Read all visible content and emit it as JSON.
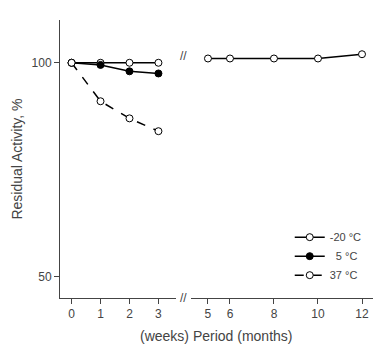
{
  "chart_data": {
    "type": "line",
    "xlabel": "(weeks) Period (months)",
    "ylabel": "Residual Activity, %",
    "ylim": [
      45,
      110
    ],
    "yticks": [
      50,
      100
    ],
    "x_axes": [
      {
        "xlim": [
          -0.4,
          3.6
        ],
        "xticks": [
          0,
          1,
          2,
          3
        ]
      },
      {
        "xlim": [
          4.25,
          12.5
        ],
        "xticks": [
          5,
          6,
          8,
          10,
          12
        ]
      }
    ],
    "annotations": [
      "//",
      "//"
    ],
    "grid": false,
    "legend": "lower right",
    "series": [
      {
        "name": "-20 °C",
        "color": "black",
        "marker": "open circle",
        "line_style": "solid",
        "x": [
          0,
          1,
          2,
          3,
          5,
          6,
          8,
          10,
          12
        ],
        "values": [
          100,
          100,
          100,
          100,
          101,
          101,
          101,
          101,
          102
        ]
      },
      {
        "name": "  5 °C",
        "color": "black",
        "marker": "filled circle",
        "line_style": "solid",
        "x": [
          0,
          1,
          2,
          3
        ],
        "values": [
          100,
          99.5,
          98,
          97.5
        ]
      },
      {
        "name": "37 °C",
        "color": "black",
        "marker": "open circle",
        "line_style": "dashed",
        "x": [
          0,
          1,
          2,
          3
        ],
        "values": [
          100,
          91,
          87,
          84
        ]
      }
    ]
  }
}
